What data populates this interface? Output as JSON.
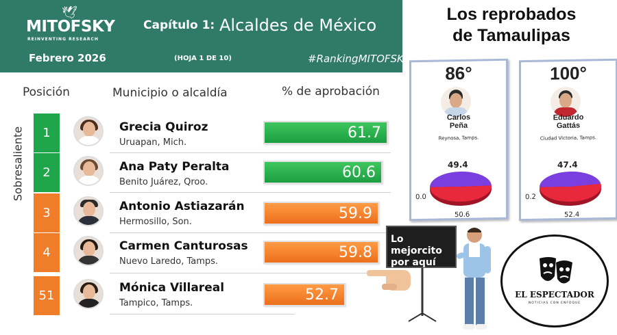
{
  "header": {
    "logo_text": "MITOFSKY",
    "logo_tagline": "REINVENTING RESEARCH",
    "chapter_label": "Capítulo 1:",
    "chapter_title": "Alcaldes de México",
    "date": "Febrero  2026",
    "sheet": "(HOJA 1 DE 10)",
    "hashtag": "#RankingMITOFSKY"
  },
  "columns": {
    "position": "Posición",
    "municipality": "Municipio o alcaldía",
    "approval": "% de aprobación"
  },
  "section_label": "Sobresaliente",
  "rows": [
    {
      "position": "1",
      "name": "Grecia Quiroz",
      "place": "Uruapan, Mich.",
      "approval": "61.7",
      "approval_value": 61.7,
      "color": "green"
    },
    {
      "position": "2",
      "name": "Ana Paty Peralta",
      "place": "Benito Juárez, Qroo.",
      "approval": "60.6",
      "approval_value": 60.6,
      "color": "green"
    },
    {
      "position": "3",
      "name": "Antonio Astiazarán",
      "place": "Hermosillo, Son.",
      "approval": "59.9",
      "approval_value": 59.9,
      "color": "orange"
    },
    {
      "position": "4",
      "name": "Carmen Canturosas",
      "place": "Nuevo Laredo, Tamps.",
      "approval": "59.8",
      "approval_value": 59.8,
      "color": "orange"
    },
    {
      "position": "51",
      "name": "Mónica Villareal",
      "place": "Tampico, Tamps.",
      "approval": "52.7",
      "approval_value": 52.7,
      "color": "orange"
    }
  ],
  "colors": {
    "header_bg": "#2f7a68",
    "green": "#1fa64a",
    "orange": "#f07d2a",
    "pie_red": "#e8283c",
    "pie_purple": "#7b3fe0"
  },
  "right_panel": {
    "title_line1": "Los reprobados",
    "title_line2": "de Tamaulipas",
    "cards": [
      {
        "degree": "86°",
        "name_line1": "Carlos",
        "name_line2": "Peña",
        "city": "Reynosa, Tamps.",
        "pie_top": "49.4",
        "pie_left": "0.0",
        "pie_bottom": "50.6",
        "purple_share": 49.4,
        "red_share": 50.6
      },
      {
        "degree": "100°",
        "name_line1": "Eduardo",
        "name_line2": "Gattás",
        "city": "Ciudad Victoria, Tamps.",
        "pie_top": "47.4",
        "pie_left": "0.2",
        "pie_bottom": "52.4",
        "purple_share": 47.4,
        "red_share": 52.4
      }
    ],
    "sign_text": "Lo mejorcito por aquí",
    "brand": "EL ESPECTADOR",
    "brand_sub": "NOTICIAS CON ENFOQUE"
  }
}
